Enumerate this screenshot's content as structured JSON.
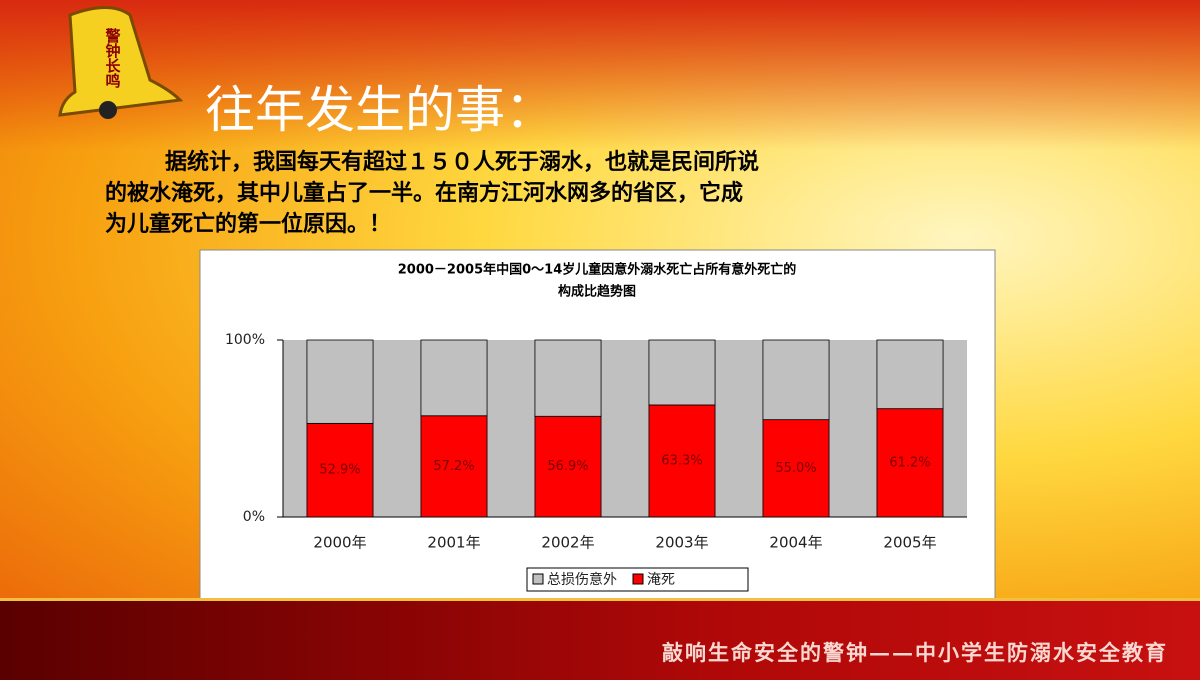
{
  "header": {
    "bell_label": "警钟长鸣",
    "title": "往年发生的事："
  },
  "body": {
    "lines": [
      "据统计，我国每天有超过１５０人死于溺水，也就是民间所说",
      "的被水淹死，其中儿童占了一半。在南方江河水网多的省区，它成",
      "为儿童死亡的第一位原因。！"
    ]
  },
  "chart_data": {
    "type": "stacked_bar",
    "title": [
      "2000－2005年中国0～14岁儿童因意外溺水死亡占所有意外死亡的",
      "构成比趋势图"
    ],
    "categories": [
      "2000年",
      "2001年",
      "2002年",
      "2003年",
      "2004年",
      "2005年"
    ],
    "series": [
      {
        "name": "淹死",
        "color": "#ff0000",
        "values": [
          52.9,
          57.2,
          56.9,
          63.3,
          55,
          61.2
        ],
        "value_labels": [
          "52.9%",
          "57.2%",
          "56.9%",
          "63.3%",
          "55.0%",
          "61.2%"
        ]
      },
      {
        "name": "总损伤意外",
        "color": "#c0c0c0",
        "values": [
          47.1,
          42.8,
          43.1,
          36.7,
          45,
          38.8
        ]
      }
    ],
    "ylim": [
      0,
      100
    ],
    "yticks": [
      {
        "value": 0,
        "label": "0%"
      },
      {
        "value": 100,
        "label": "100%"
      }
    ]
  },
  "footer": {
    "text": "敲响生命安全的警钟——中小学生防溺水安全教育"
  }
}
